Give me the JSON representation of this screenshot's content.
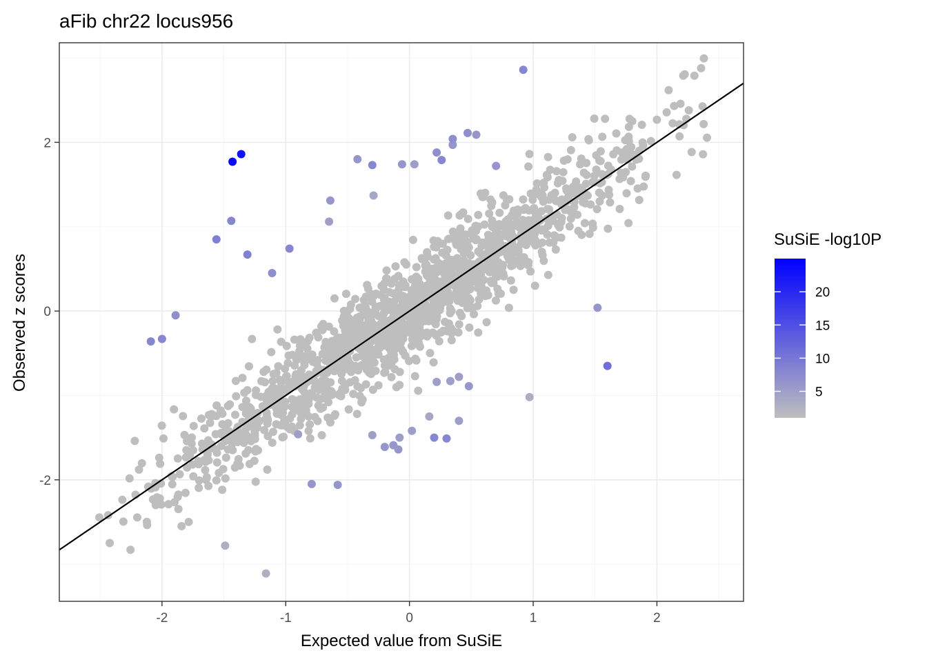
{
  "chart_data": {
    "type": "scatter",
    "title": "aFib chr22 locus956",
    "xlabel": "Expected value from SuSiE",
    "ylabel": "Observed z scores",
    "xlim": [
      -2.83,
      2.7
    ],
    "ylim": [
      -3.44,
      3.18
    ],
    "x_ticks": [
      -2,
      -1,
      0,
      1,
      2
    ],
    "x_tick_labels": [
      "-2",
      "-1",
      "0",
      "1",
      "2"
    ],
    "y_ticks": [
      -2,
      0,
      2
    ],
    "y_tick_labels": [
      "-2",
      "0",
      "2"
    ],
    "grid": true,
    "reference_line": {
      "slope": 1,
      "intercept": 0,
      "label": "y = x"
    },
    "legend": {
      "title": "SuSiE -log10P",
      "position": "right",
      "min": 1,
      "max": 25,
      "ticks": [
        5,
        10,
        15,
        20
      ],
      "tick_labels": [
        "5",
        "10",
        "15",
        "20"
      ],
      "color_low": "#bebebe",
      "color_high": "#0000ff"
    },
    "colors": {
      "point_low": "#bebebe",
      "point_high": "#0000ff",
      "line": "#000000",
      "panel_border": "#333333"
    },
    "background_points": {
      "description": "dense diagonal cloud of low-significance variants (color = low end of scale)",
      "count": 1500,
      "x_range": [
        -2.55,
        2.45
      ],
      "residual_sd": 0.3,
      "neglog10p": 1
    },
    "highlighted_points": [
      {
        "x": -1.43,
        "y": 1.77,
        "p": 24
      },
      {
        "x": -1.36,
        "y": 1.86,
        "p": 23
      },
      {
        "x": 0.92,
        "y": 2.86,
        "p": 8
      },
      {
        "x": -1.44,
        "y": 1.07,
        "p": 8
      },
      {
        "x": -1.56,
        "y": 0.85,
        "p": 9
      },
      {
        "x": -1.31,
        "y": 0.67,
        "p": 9
      },
      {
        "x": -0.97,
        "y": 0.74,
        "p": 8
      },
      {
        "x": -1.11,
        "y": 0.45,
        "p": 7
      },
      {
        "x": -1.89,
        "y": -0.05,
        "p": 7
      },
      {
        "x": -2.09,
        "y": -0.36,
        "p": 8
      },
      {
        "x": -2.0,
        "y": -0.33,
        "p": 8
      },
      {
        "x": -0.42,
        "y": 1.8,
        "p": 6
      },
      {
        "x": -0.3,
        "y": 1.73,
        "p": 8
      },
      {
        "x": -0.06,
        "y": 1.74,
        "p": 6
      },
      {
        "x": 0.04,
        "y": 1.74,
        "p": 5
      },
      {
        "x": 0.22,
        "y": 1.88,
        "p": 7
      },
      {
        "x": 0.26,
        "y": 1.79,
        "p": 8
      },
      {
        "x": 0.35,
        "y": 2.04,
        "p": 7
      },
      {
        "x": 0.35,
        "y": 1.97,
        "p": 6
      },
      {
        "x": 0.47,
        "y": 2.11,
        "p": 7
      },
      {
        "x": 0.54,
        "y": 2.09,
        "p": 6
      },
      {
        "x": 0.7,
        "y": 1.72,
        "p": 6
      },
      {
        "x": -0.64,
        "y": 1.31,
        "p": 6
      },
      {
        "x": -0.65,
        "y": 1.06,
        "p": 5
      },
      {
        "x": -0.29,
        "y": 1.37,
        "p": 4
      },
      {
        "x": 1.52,
        "y": 0.04,
        "p": 6
      },
      {
        "x": 1.6,
        "y": -0.65,
        "p": 11
      },
      {
        "x": 0.2,
        "y": -1.5,
        "p": 8
      },
      {
        "x": 0.3,
        "y": -1.51,
        "p": 8
      },
      {
        "x": -0.2,
        "y": -1.61,
        "p": 6
      },
      {
        "x": -0.13,
        "y": -1.59,
        "p": 6
      },
      {
        "x": -0.09,
        "y": -1.64,
        "p": 6
      },
      {
        "x": -0.3,
        "y": -1.47,
        "p": 5
      },
      {
        "x": -0.08,
        "y": -1.5,
        "p": 5
      },
      {
        "x": 0.02,
        "y": -1.42,
        "p": 5
      },
      {
        "x": -0.79,
        "y": -2.05,
        "p": 6
      },
      {
        "x": -0.58,
        "y": -2.06,
        "p": 6
      },
      {
        "x": -0.9,
        "y": -1.46,
        "p": 5
      },
      {
        "x": 0.4,
        "y": -0.78,
        "p": 5
      },
      {
        "x": 0.48,
        "y": -0.89,
        "p": 6
      },
      {
        "x": 0.33,
        "y": -0.83,
        "p": 5
      },
      {
        "x": 0.22,
        "y": -0.84,
        "p": 5
      },
      {
        "x": 0.4,
        "y": -1.3,
        "p": 5
      },
      {
        "x": 0.16,
        "y": -1.25,
        "p": 4
      },
      {
        "x": -1.16,
        "y": -3.11,
        "p": 3
      },
      {
        "x": -1.49,
        "y": -2.78,
        "p": 3
      },
      {
        "x": 0.97,
        "y": -1.02,
        "p": 3
      }
    ]
  }
}
